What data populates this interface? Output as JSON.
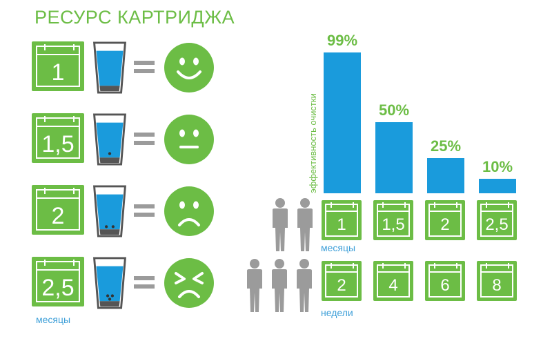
{
  "title": "РЕСУРС КАРТРИДЖА",
  "left_rows": [
    {
      "calendar": "1",
      "face": "happy",
      "particles": 0
    },
    {
      "calendar": "1,5",
      "face": "neutral",
      "particles": 1
    },
    {
      "calendar": "2",
      "face": "sad",
      "particles": 2
    },
    {
      "calendar": "2,5",
      "face": "angry",
      "particles": 3
    }
  ],
  "left_unit": "месяцы",
  "icons": {
    "calendar": "calendar-icon",
    "glass": "water-glass-icon",
    "equals": "equals-icon",
    "person": "person-icon"
  },
  "colors": {
    "green": "#6cbd45",
    "blue": "#1a9bdc",
    "gray": "#9b9b9b"
  },
  "chart_data": {
    "type": "bar",
    "title": "",
    "ylabel": "эффективность очистки",
    "categories": [
      "1",
      "1,5",
      "2",
      "2,5"
    ],
    "values": [
      99,
      50,
      25,
      10
    ],
    "value_labels": [
      "99%",
      "50%",
      "25%",
      "10%"
    ],
    "ylim": [
      0,
      100
    ],
    "x_unit_primary": "месяцы",
    "x_secondary": [
      "2",
      "4",
      "6",
      "8"
    ],
    "x_unit_secondary": "недели",
    "grid": false,
    "legend": "none"
  }
}
